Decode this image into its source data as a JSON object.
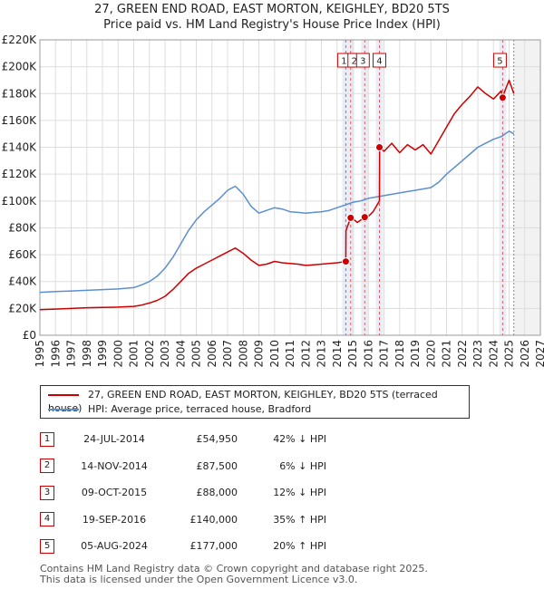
{
  "chart_data": {
    "type": "line",
    "title": "27, GREEN END ROAD, EAST MORTON, KEIGHLEY, BD20 5TS",
    "subtitle": "Price paid vs. HM Land Registry's House Price Index (HPI)",
    "xlabel": "",
    "ylabel": "",
    "xlim": [
      1995,
      2027
    ],
    "ylim": [
      0,
      220000
    ],
    "x_ticks": [
      "1995",
      "1996",
      "1997",
      "1998",
      "1999",
      "2000",
      "2001",
      "2002",
      "2003",
      "2004",
      "2005",
      "2006",
      "2007",
      "2008",
      "2009",
      "2010",
      "2011",
      "2012",
      "2013",
      "2014",
      "2015",
      "2016",
      "2017",
      "2018",
      "2019",
      "2020",
      "2021",
      "2022",
      "2023",
      "2024",
      "2025",
      "2026",
      "2027"
    ],
    "y_ticks": [
      {
        "value": 0,
        "label": "£0"
      },
      {
        "value": 20000,
        "label": "£20K"
      },
      {
        "value": 40000,
        "label": "£40K"
      },
      {
        "value": 60000,
        "label": "£60K"
      },
      {
        "value": 80000,
        "label": "£80K"
      },
      {
        "value": 100000,
        "label": "£100K"
      },
      {
        "value": 120000,
        "label": "£120K"
      },
      {
        "value": 140000,
        "label": "£140K"
      },
      {
        "value": 160000,
        "label": "£160K"
      },
      {
        "value": 180000,
        "label": "£180K"
      },
      {
        "value": 200000,
        "label": "£200K"
      },
      {
        "value": 220000,
        "label": "£220K"
      }
    ],
    "grid": true,
    "colors": {
      "property": "#cc0000",
      "hpi": "#5b8fd0",
      "band": "#e8eef8",
      "grid": "#dddddd",
      "plot_bg": "#ffffff"
    },
    "series": [
      {
        "name": "27, GREEN END ROAD, EAST MORTON, KEIGHLEY, BD20 5TS (terraced house)",
        "color": "#cc0000",
        "x": [
          1995.0,
          1996.0,
          1997.0,
          1998.0,
          1999.0,
          2000.0,
          2001.0,
          2001.5,
          2002.0,
          2002.5,
          2003.0,
          2003.5,
          2004.0,
          2004.5,
          2005.0,
          2005.5,
          2006.0,
          2006.5,
          2007.0,
          2007.5,
          2008.0,
          2008.5,
          2009.0,
          2009.5,
          2010.0,
          2010.5,
          2011.0,
          2011.5,
          2012.0,
          2012.5,
          2013.0,
          2013.5,
          2014.0,
          2014.56,
          2014.57,
          2014.87,
          2014.88,
          2015.3,
          2015.77,
          2015.78,
          2016.3,
          2016.71,
          2016.72,
          2017.0,
          2017.5,
          2018.0,
          2018.5,
          2019.0,
          2019.5,
          2020.0,
          2020.5,
          2021.0,
          2021.5,
          2022.0,
          2022.5,
          2023.0,
          2023.5,
          2024.0,
          2024.5,
          2024.59,
          2024.6,
          2025.0,
          2025.3
        ],
        "y": [
          19000,
          19500,
          20000,
          20500,
          20800,
          21000,
          21500,
          22500,
          24000,
          26000,
          29000,
          34000,
          40000,
          46000,
          50000,
          53000,
          56000,
          59000,
          62000,
          65000,
          61000,
          56000,
          52000,
          53000,
          55000,
          54000,
          53500,
          53000,
          52000,
          52500,
          53000,
          53500,
          54000,
          54950,
          78000,
          87500,
          88000,
          84000,
          88000,
          86000,
          92000,
          100000,
          140000,
          137000,
          143000,
          136000,
          142000,
          138000,
          142000,
          135000,
          145000,
          155000,
          165000,
          172000,
          178000,
          185000,
          180000,
          176000,
          182000,
          177000,
          178000,
          190000,
          180000
        ]
      },
      {
        "name": "HPI: Average price, terraced house, Bradford",
        "color": "#5b8fd0",
        "x": [
          1995.0,
          1996.0,
          1997.0,
          1998.0,
          1999.0,
          2000.0,
          2001.0,
          2001.5,
          2002.0,
          2002.5,
          2003.0,
          2003.5,
          2004.0,
          2004.5,
          2005.0,
          2005.5,
          2006.0,
          2006.5,
          2007.0,
          2007.5,
          2008.0,
          2008.5,
          2009.0,
          2009.5,
          2010.0,
          2010.5,
          2011.0,
          2011.5,
          2012.0,
          2012.5,
          2013.0,
          2013.5,
          2014.0,
          2014.5,
          2015.0,
          2015.5,
          2016.0,
          2016.5,
          2017.0,
          2017.5,
          2018.0,
          2018.5,
          2019.0,
          2019.5,
          2020.0,
          2020.5,
          2021.0,
          2021.5,
          2022.0,
          2022.5,
          2023.0,
          2023.5,
          2024.0,
          2024.5,
          2025.0,
          2025.3
        ],
        "y": [
          32000,
          32500,
          33000,
          33500,
          34000,
          34500,
          35500,
          37500,
          40000,
          44000,
          50000,
          58000,
          68000,
          78000,
          86000,
          92000,
          97000,
          102000,
          108000,
          111000,
          105000,
          96000,
          91000,
          93000,
          95000,
          94000,
          92000,
          91500,
          91000,
          91500,
          92000,
          93000,
          95000,
          97000,
          99000,
          100000,
          102000,
          103000,
          104000,
          105000,
          106000,
          107000,
          108000,
          109000,
          110000,
          114000,
          120000,
          125000,
          130000,
          135000,
          140000,
          143000,
          146000,
          148000,
          152000,
          150000
        ]
      }
    ],
    "sales": [
      {
        "id": "1",
        "date": "24-JUL-2014",
        "year": 2014.56,
        "price": 54950,
        "price_label": "£54,950",
        "hpi": "42% ↓ HPI"
      },
      {
        "id": "2",
        "date": "14-NOV-2014",
        "year": 2014.87,
        "price": 87500,
        "price_label": "£87,500",
        "hpi": "6% ↓ HPI"
      },
      {
        "id": "3",
        "date": "09-OCT-2015",
        "year": 2015.77,
        "price": 88000,
        "price_label": "£88,000",
        "hpi": "12% ↓ HPI"
      },
      {
        "id": "4",
        "date": "19-SEP-2016",
        "year": 2016.71,
        "price": 140000,
        "price_label": "£140,000",
        "hpi": "35% ↑ HPI"
      },
      {
        "id": "5",
        "date": "05-AUG-2024",
        "year": 2024.59,
        "price": 177000,
        "price_label": "£177,000",
        "hpi": "20% ↑ HPI"
      }
    ],
    "forecast_start_year": 2025.3,
    "legend": {
      "property": "27, GREEN END ROAD, EAST MORTON, KEIGHLEY, BD20 5TS (terraced house)",
      "hpi": "HPI: Average price, terraced house, Bradford"
    }
  },
  "footer": {
    "line1": "Contains HM Land Registry data © Crown copyright and database right 2025.",
    "line2": "This data is licensed under the Open Government Licence v3.0."
  }
}
